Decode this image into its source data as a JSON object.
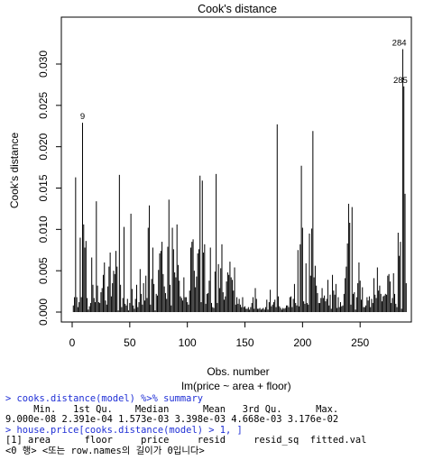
{
  "chart_data": {
    "type": "bar",
    "title": "Cook's distance",
    "xlabel": "Obs. number",
    "subtitle": "lm(price ~ area + floor)",
    "ylabel": "Cook's distance",
    "xlim": [
      0,
      290
    ],
    "ylim": [
      0,
      0.034
    ],
    "xticks": [
      0,
      50,
      100,
      150,
      200,
      250
    ],
    "yticks": [
      0.0,
      0.005,
      0.01,
      0.015,
      0.02,
      0.025,
      0.03
    ],
    "ytick_labels": [
      "0.000",
      "0.005",
      "0.010",
      "0.015",
      "0.020",
      "0.025",
      "0.030"
    ],
    "annotations": [
      {
        "x": 9,
        "y": 0.0229,
        "label": "9"
      },
      {
        "x": 284,
        "y": 0.0318,
        "label": "284"
      },
      {
        "x": 285,
        "y": 0.0273,
        "label": "285"
      }
    ],
    "values": [
      0.0008,
      0.0018,
      0.0163,
      0.0018,
      0.0006,
      0.0012,
      0.009,
      0.0018,
      0.0229,
      0.0106,
      0.0078,
      0.0086,
      0.0017,
      0.0003,
      0.0007,
      0.0011,
      0.0066,
      0.0033,
      0.0017,
      0.0012,
      0.0134,
      0.0032,
      0.0012,
      0.0011,
      0.0024,
      0.0029,
      0.0045,
      0.006,
      0.0014,
      0.0009,
      0.0031,
      0.0055,
      0.0072,
      0.0019,
      0.0035,
      0.005,
      0.0046,
      0.0074,
      0.0055,
      0.0002,
      0.0166,
      0.0033,
      0.0006,
      0.0017,
      0.0103,
      0.001,
      0.0008,
      0.0016,
      0.0002,
      0.0011,
      0.0119,
      0.0028,
      0.0008,
      0.0004,
      0.0016,
      0.0033,
      0.0006,
      0.0012,
      0.0052,
      0.0022,
      0.0009,
      0.0035,
      0.0014,
      0.0044,
      0.0017,
      0.0102,
      0.0129,
      0.0009,
      0.004,
      0.0078,
      0.0034,
      0.0002,
      0.0022,
      0.002,
      0.0051,
      0.0071,
      0.0074,
      0.0085,
      0.0046,
      0.0031,
      0.0023,
      0.0016,
      0.0079,
      0.0136,
      0.0033,
      0.0008,
      0.0102,
      0.0076,
      0.0048,
      0.0042,
      0.0106,
      0.0057,
      0.0038,
      0.0019,
      0.0017,
      0.0014,
      0.0042,
      0.0018,
      0.0018,
      0.0012,
      0.0009,
      0.0026,
      0.0078,
      0.0085,
      0.0088,
      0.005,
      0.003,
      0.0043,
      0.0071,
      0.0076,
      0.0165,
      0.0012,
      0.0159,
      0.0072,
      0.0082,
      0.001,
      0.0022,
      0.0023,
      0.0038,
      0.0078,
      0.0011,
      0.0006,
      0.0005,
      0.0049,
      0.0167,
      0.0011,
      0.0058,
      0.0029,
      0.0053,
      0.0082,
      0.0024,
      0.0015,
      0.0019,
      0.0037,
      0.0048,
      0.0045,
      0.0061,
      0.0042,
      0.0039,
      0.0026,
      0.0054,
      0.0009,
      0.0018,
      0.001,
      0.0016,
      0.0009,
      0.0006,
      0.0018,
      0.0006,
      0.0007,
      0.0004,
      0.0004,
      0.0006,
      0.0003,
      0.0006,
      0.0011,
      0.0018,
      0.0004,
      0.0029,
      0.0016,
      0.0004,
      0.0004,
      0.0005,
      0.0003,
      0.0004,
      0.0005,
      0.0003,
      0.0006,
      0.0015,
      0.0003,
      0.0012,
      0.0027,
      0.0007,
      0.0009,
      0.0012,
      0.0015,
      0.0006,
      0.0227,
      0.0019,
      0.0007,
      0.0005,
      0.0003,
      0.0005,
      0.0004,
      0.0005,
      0.0008,
      0.0008,
      0.0006,
      0.0018,
      0.0019,
      0.0006,
      0.0016,
      0.0034,
      0.0011,
      0.0008,
      0.0075,
      0.0007,
      0.0082,
      0.0177,
      0.0102,
      0.0013,
      0.001,
      0.0059,
      0.0011,
      0.0009,
      0.0095,
      0.0044,
      0.0101,
      0.0219,
      0.0042,
      0.0056,
      0.0032,
      0.0023,
      0.0011,
      0.0011,
      0.0017,
      0.0029,
      0.0017,
      0.002,
      0.0013,
      0.0016,
      0.0039,
      0.0008,
      0.0021,
      0.0004,
      0.0045,
      0.0026,
      0.0021,
      0.0034,
      0.0005,
      0.0018,
      0.0006,
      0.0012,
      0.0007,
      0.0008,
      0.0022,
      0.0041,
      0.0055,
      0.0083,
      0.0131,
      0.0108,
      0.0009,
      0.0127,
      0.0022,
      0.0024,
      0.0003,
      0.0018,
      0.0035,
      0.006,
      0.0038,
      0.0015,
      0.003,
      0.0006,
      0.0006,
      0.0008,
      0.0018,
      0.0014,
      0.0019,
      0.0006,
      0.0016,
      0.0011,
      0.0041,
      0.0021,
      0.0017,
      0.0054,
      0.0026,
      0.0032,
      0.0022,
      0.0013,
      0.0019,
      0.002,
      0.0022,
      0.0021,
      0.0044,
      0.0046,
      0.0037,
      0.0011,
      0.0017,
      0.0047,
      0.0022,
      0.001,
      0.0006,
      0.0096,
      0.0068,
      0.0085,
      0.0004,
      0.0318,
      0.0273,
      0.0143,
      0.0035
    ]
  },
  "console": [
    {
      "kind": "cmd",
      "text": "> cooks.distance(model) %>% summary"
    },
    {
      "kind": "out",
      "text": "     Min.   1st Qu.    Median      Mean   3rd Qu.      Max. "
    },
    {
      "kind": "out",
      "text": "9.000e-08 2.391e-04 1.573e-03 3.398e-03 4.668e-03 3.176e-02 "
    },
    {
      "kind": "cmd",
      "text": "> house.price[cooks.distance(model) > 1, ]"
    },
    {
      "kind": "out",
      "text": "[1] area      floor     price     resid     resid_sq  fitted.val"
    },
    {
      "kind": "out",
      "text": "<0 행> <또는 row.names의 길이가 0입니다>"
    }
  ]
}
